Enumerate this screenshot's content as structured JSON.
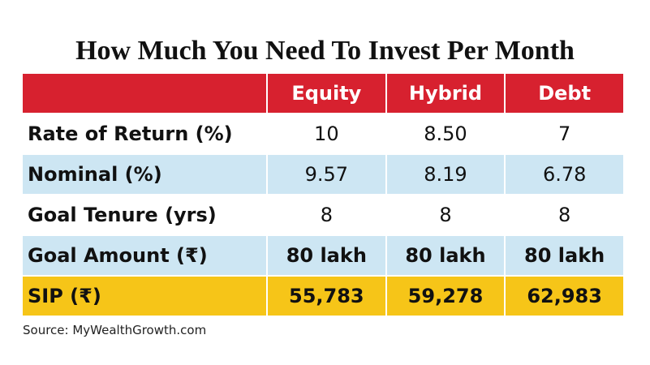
{
  "title": "How Much You Need To Invest Per Month",
  "table": {
    "header": [
      "Equity",
      "Hybrid",
      "Debt"
    ],
    "rows": [
      [
        "Rate of Return (%)",
        "10",
        "8.50",
        "7"
      ],
      [
        "Nominal (%)",
        "9.57",
        "8.19",
        "6.78"
      ],
      [
        "Goal Tenure (yrs)",
        "8",
        "8",
        "8"
      ],
      [
        "Goal Amount (₹)",
        "80 lakh",
        "80 lakh",
        "80 lakh"
      ],
      [
        "SIP (₹)",
        "55,783",
        "59,278",
        "62,983"
      ]
    ]
  },
  "source": "Source: MyWealthGrowth.com"
}
